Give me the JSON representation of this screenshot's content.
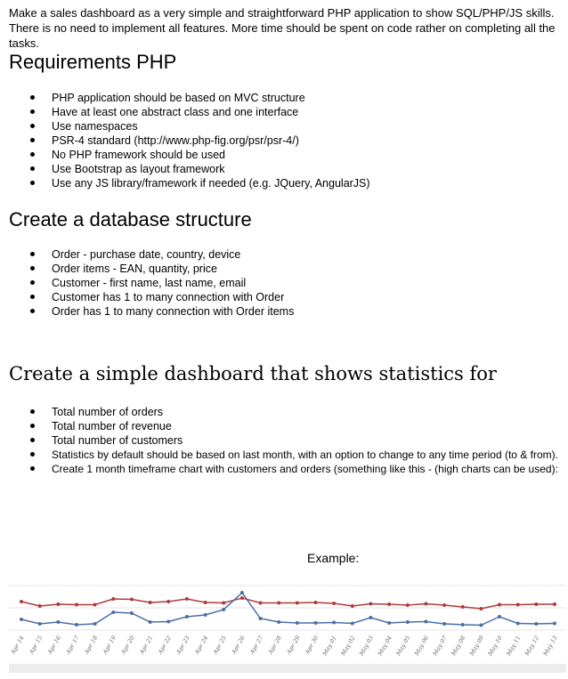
{
  "intro": "Make a sales dashboard as a very simple and straightforward PHP application to show SQL/PHP/JS skills. There is no need to implement all features. More time should be spent on code rather on completing all the tasks.",
  "sections": {
    "php": {
      "title": "Requirements PHP",
      "items": [
        "PHP application should be based on MVC structure",
        "Have at least one abstract class and one interface",
        "Use namespaces",
        "PSR-4 standard (http://www.php-fig.org/psr/psr-4/)",
        "No PHP framework should be used",
        "Use Bootstrap as layout framework",
        "Use any JS library/framework if needed (e.g. JQuery, AngularJS)"
      ]
    },
    "db": {
      "title": "Create a database structure",
      "items": [
        "Order - purchase date, country, device",
        "Order items - EAN, quantity, price",
        "Customer - first name, last name, email",
        "Customer has 1 to many connection with Order",
        "Order has 1 to many connection with Order items"
      ]
    },
    "dashboard": {
      "title": "Create a simple dashboard that shows statistics for",
      "items": [
        "Total number of orders",
        "Total number of revenue",
        "Total number of customers",
        "Statistics by default should be based on last month, with an option to change to any time period (to  & from).",
        "Create 1 month timeframe chart with customers and orders (something like this - (high charts can be used):"
      ]
    }
  },
  "example_label": "Example:",
  "chart_data": {
    "type": "line",
    "categories": [
      "Apr 14",
      "Apr 15",
      "Apr 16",
      "Apr 17",
      "Apr 18",
      "Apr 19",
      "Apr 20",
      "Apr 21",
      "Apr 22",
      "Apr 23",
      "Apr 24",
      "Apr 25",
      "Apr 26",
      "Apr 27",
      "Apr 28",
      "Apr 29",
      "Apr 30",
      "May 01",
      "May 02",
      "May 03",
      "May 04",
      "May 05",
      "May 06",
      "May 07",
      "May 08",
      "May 09",
      "May 10",
      "May 11",
      "May 12",
      "May 13"
    ],
    "series": [
      {
        "color": "#b03a3a",
        "values": [
          32,
          27,
          29,
          28.5,
          28.5,
          35,
          34.5,
          31,
          32,
          35,
          31,
          30.5,
          36,
          30.5,
          30.5,
          30.5,
          31,
          30,
          27,
          29.5,
          29,
          28,
          29.5,
          28,
          26,
          24,
          28.5,
          28.5,
          29,
          29
        ]
      },
      {
        "color": "#4a6fa5",
        "values": [
          12,
          7,
          9,
          6,
          7,
          20,
          19,
          9,
          9.5,
          15,
          17,
          23,
          42,
          13,
          9,
          8,
          8,
          8.5,
          7.5,
          14,
          8,
          9,
          9.5,
          7,
          6,
          5.5,
          15,
          7.5,
          7,
          7.5
        ]
      }
    ],
    "ylim": [
      0,
      50
    ],
    "grid": true
  }
}
